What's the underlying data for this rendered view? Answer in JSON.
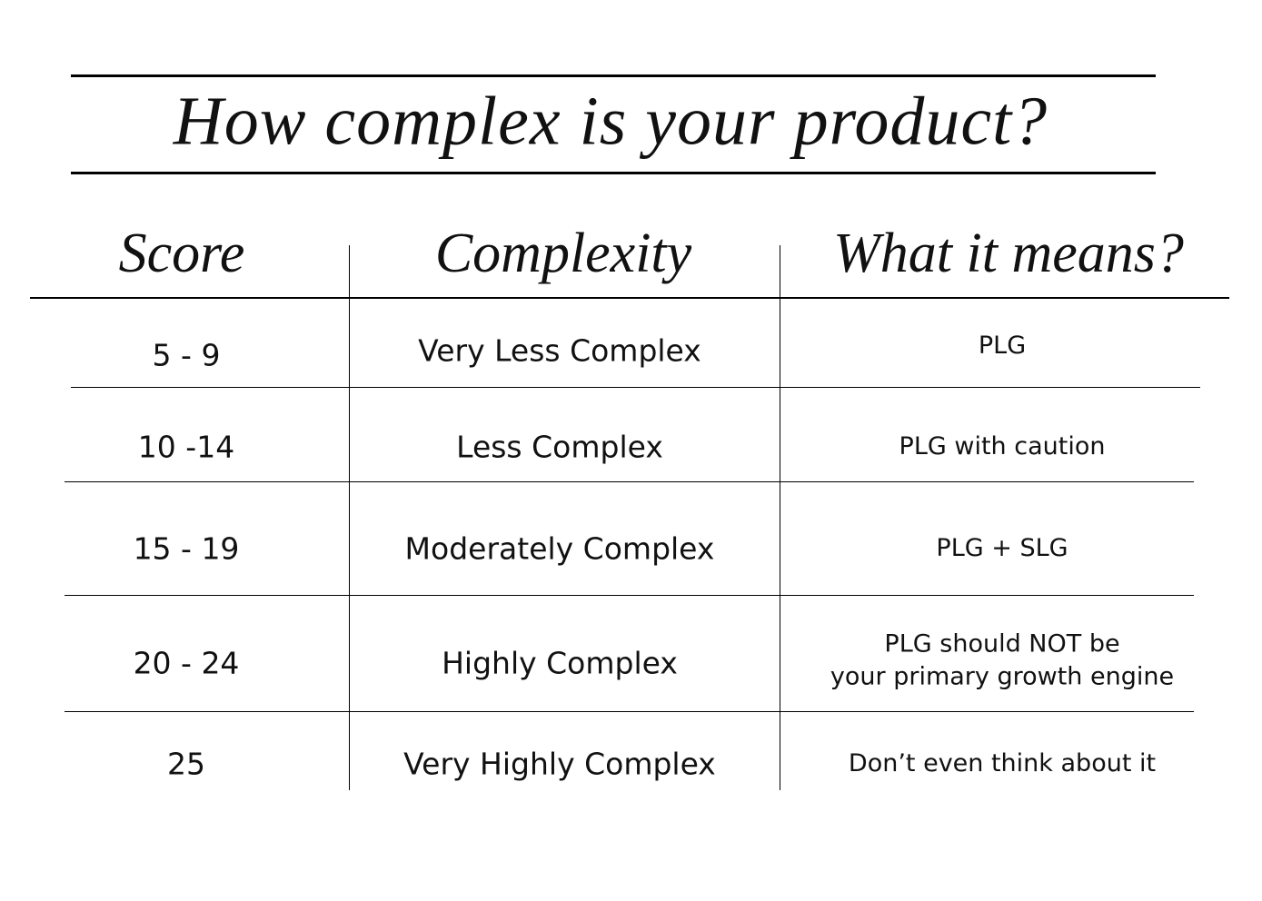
{
  "header": {
    "title": "How complex is your product?"
  },
  "table": {
    "columns": [
      "Score",
      "Complexity",
      "What it means?"
    ],
    "rows": [
      [
        "5 - 9",
        "Very Less Complex",
        "PLG"
      ],
      [
        "10 -14",
        "Less Complex",
        "PLG with caution"
      ],
      [
        "15 - 19",
        "Moderately Complex",
        "PLG + SLG"
      ],
      [
        "20 - 24",
        "Highly Complex",
        "PLG should NOT be\nyour primary growth engine"
      ],
      [
        "25",
        "Very Highly Complex",
        "Don’t even think about it"
      ]
    ]
  }
}
